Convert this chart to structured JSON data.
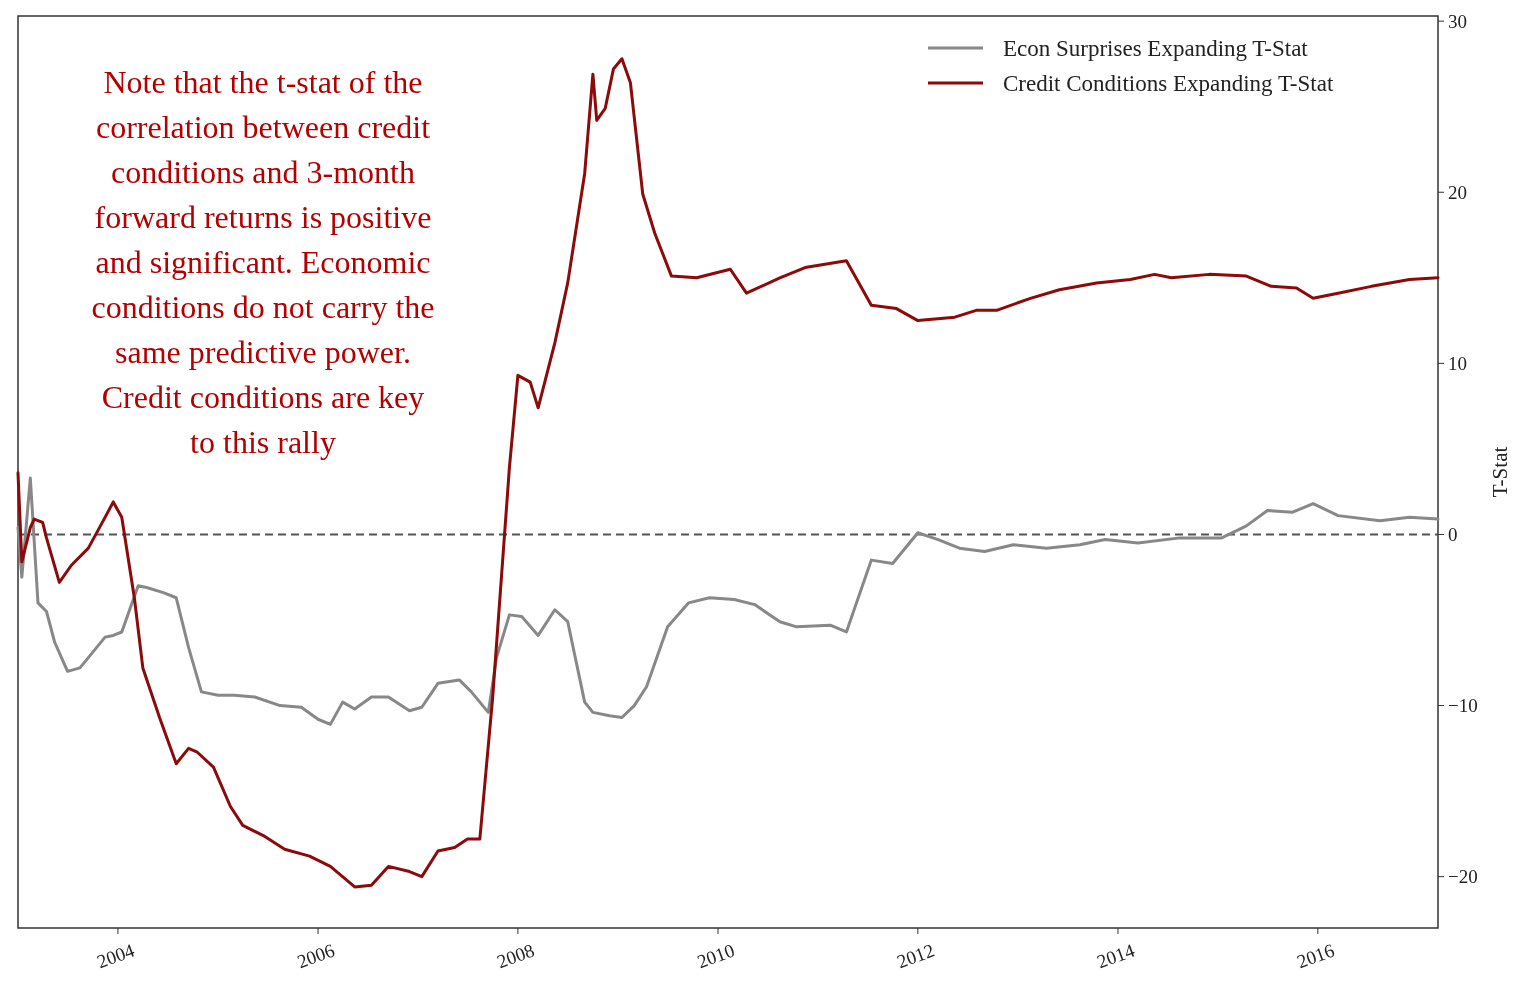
{
  "chart_data": {
    "type": "line",
    "ylabel": "T-Stat",
    "xlim": [
      "2003-01-01",
      "2017-03-15"
    ],
    "xticks": [
      {
        "value": "2004",
        "label": "2004"
      },
      {
        "value": "2006",
        "label": "2006"
      },
      {
        "value": "2008",
        "label": "2008"
      },
      {
        "value": "2010",
        "label": "2010"
      },
      {
        "value": "2012",
        "label": "2012"
      },
      {
        "value": "2014",
        "label": "2014"
      },
      {
        "value": "2016",
        "label": "2016"
      }
    ],
    "ylim": [
      -23,
      30.3
    ],
    "yticks": [
      -20,
      -10,
      0,
      10,
      20,
      30
    ],
    "grid": false,
    "legend": "top right",
    "line_style": "solid",
    "ref_lines": [
      {
        "axis": "y",
        "value": 0,
        "color": "#555555",
        "line_style": "dashed"
      }
    ],
    "annotations": [
      "Note that the t-stat of  the\ncorrelation between credit\nconditions and 3-month\nforward returns is positive\nand significant.  Economic\nconditions do not carry the\nsame predictive power.\nCredit conditions are key\nto this rally"
    ],
    "series": [
      {
        "name": "Econ Surprises Expanding T-Stat",
        "color": "#888888",
        "x": [
          "2003-01-01",
          "2003-01-15",
          "2003-02-15",
          "2003-03-15",
          "2003-04-15",
          "2003-05-15",
          "2003-07-01",
          "2003-08-15",
          "2003-09-15",
          "2003-11-15",
          "2003-12-15",
          "2004-01-15",
          "2004-03-15",
          "2004-04-15",
          "2004-06-15",
          "2004-08-01",
          "2004-09-15",
          "2004-11-01",
          "2005-01-01",
          "2005-03-01",
          "2005-05-15",
          "2005-08-15",
          "2005-11-01",
          "2006-01-01",
          "2006-02-15",
          "2006-04-01",
          "2006-05-15",
          "2006-07-15",
          "2006-09-15",
          "2006-12-01",
          "2007-01-15",
          "2007-03-15",
          "2007-06-01",
          "2007-07-15",
          "2007-09-15",
          "2007-10-15",
          "2007-12-01",
          "2008-01-15",
          "2008-03-15",
          "2008-05-15",
          "2008-07-01",
          "2008-09-01",
          "2008-10-01",
          "2008-12-01",
          "2009-01-15",
          "2009-03-01",
          "2009-04-15",
          "2009-07-01",
          "2009-09-15",
          "2009-12-01",
          "2010-03-01",
          "2010-05-15",
          "2010-08-15",
          "2010-10-15",
          "2011-02-15",
          "2011-04-15",
          "2011-07-15",
          "2011-10-01",
          "2012-01-01",
          "2012-03-15",
          "2012-06-01",
          "2012-09-01",
          "2012-12-15",
          "2013-04-15",
          "2013-08-15",
          "2013-11-15",
          "2014-03-15",
          "2014-08-15",
          "2015-01-15",
          "2015-04-15",
          "2015-07-01",
          "2015-10-01",
          "2015-12-15",
          "2016-03-15",
          "2016-08-15",
          "2016-12-01",
          "2017-03-15"
        ],
        "values": [
          0.4,
          -2.5,
          3.3,
          -4.0,
          -4.5,
          -6.3,
          -8.0,
          -7.8,
          -7.2,
          -6.0,
          -5.9,
          -5.7,
          -3.0,
          -3.1,
          -3.4,
          -3.7,
          -6.6,
          -9.2,
          -9.4,
          -9.4,
          -9.5,
          -10.0,
          -10.1,
          -10.8,
          -11.1,
          -9.8,
          -10.2,
          -9.5,
          -9.5,
          -10.3,
          -10.1,
          -8.7,
          -8.5,
          -9.2,
          -10.4,
          -7.2,
          -4.7,
          -4.8,
          -5.9,
          -4.4,
          -5.1,
          -9.8,
          -10.4,
          -10.6,
          -10.7,
          -10.0,
          -8.9,
          -5.4,
          -4.0,
          -3.7,
          -3.8,
          -4.1,
          -5.1,
          -5.4,
          -5.3,
          -5.7,
          -1.5,
          -1.7,
          0.1,
          -0.3,
          -0.8,
          -1.0,
          -0.6,
          -0.8,
          -0.6,
          -0.3,
          -0.5,
          -0.2,
          -0.2,
          0.5,
          1.4,
          1.3,
          1.8,
          1.1,
          0.8,
          1.0,
          0.9
        ]
      },
      {
        "name": "Credit Conditions Expanding T-Stat",
        "color": "#8b0a0a",
        "x": [
          "2003-01-01",
          "2003-01-15",
          "2003-02-15",
          "2003-03-01",
          "2003-04-01",
          "2003-04-15",
          "2003-06-01",
          "2003-07-15",
          "2003-09-15",
          "2003-11-15",
          "2003-12-15",
          "2004-01-15",
          "2004-03-01",
          "2004-04-01",
          "2004-06-01",
          "2004-08-01",
          "2004-09-15",
          "2004-10-15",
          "2004-12-15",
          "2005-02-15",
          "2005-04-01",
          "2005-06-15",
          "2005-09-01",
          "2005-12-01",
          "2006-02-15",
          "2006-05-15",
          "2006-07-15",
          "2006-09-15",
          "2006-12-01",
          "2007-01-15",
          "2007-03-15",
          "2007-05-15",
          "2007-07-01",
          "2007-08-15",
          "2007-10-01",
          "2007-12-01",
          "2008-01-01",
          "2008-02-15",
          "2008-03-15",
          "2008-05-15",
          "2008-07-01",
          "2008-09-01",
          "2008-10-01",
          "2008-10-15",
          "2008-11-15",
          "2008-12-15",
          "2009-01-15",
          "2009-02-15",
          "2009-04-01",
          "2009-05-15",
          "2009-07-15",
          "2009-10-15",
          "2010-02-15",
          "2010-04-15",
          "2010-08-15",
          "2010-11-15",
          "2011-04-15",
          "2011-07-15",
          "2011-10-15",
          "2012-01-01",
          "2012-05-15",
          "2012-08-01",
          "2012-10-15",
          "2013-02-15",
          "2013-06-01",
          "2013-10-15",
          "2014-02-15",
          "2014-05-15",
          "2014-07-15",
          "2014-12-01",
          "2015-04-15",
          "2015-07-15",
          "2015-10-15",
          "2015-12-15",
          "2016-03-15",
          "2016-07-15",
          "2016-12-01",
          "2017-03-15"
        ],
        "values": [
          3.6,
          -1.6,
          0.4,
          0.9,
          0.7,
          -0.2,
          -2.8,
          -1.8,
          -0.8,
          1.0,
          1.9,
          1.0,
          -3.7,
          -7.8,
          -10.7,
          -13.4,
          -12.5,
          -12.7,
          -13.6,
          -15.9,
          -17.0,
          -17.6,
          -18.4,
          -18.8,
          -19.4,
          -20.6,
          -20.5,
          -19.4,
          -19.7,
          -20.0,
          -18.5,
          -18.3,
          -17.8,
          -17.8,
          -9.5,
          3.9,
          9.3,
          8.9,
          7.4,
          11.2,
          14.7,
          21.1,
          26.9,
          24.2,
          24.9,
          27.2,
          27.8,
          26.4,
          19.9,
          17.6,
          15.1,
          15.0,
          15.5,
          14.1,
          15.0,
          15.6,
          16.0,
          13.4,
          13.2,
          12.5,
          12.7,
          13.1,
          13.1,
          13.8,
          14.3,
          14.7,
          14.9,
          15.2,
          15.0,
          15.2,
          15.1,
          14.5,
          14.4,
          13.8,
          14.1,
          14.5,
          14.9,
          15.0
        ]
      }
    ]
  }
}
